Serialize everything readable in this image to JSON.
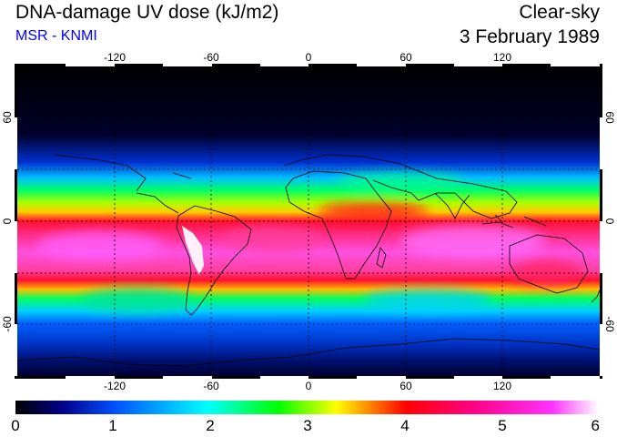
{
  "header": {
    "title": "DNA-damage UV dose (kJ/m2)",
    "source": "MSR - KNMI",
    "condition": "Clear-sky",
    "date": "3 February 1989"
  },
  "axes": {
    "lon_ticks": [
      "-120",
      "-60",
      "0",
      "60",
      "120"
    ],
    "lat_ticks": [
      "60",
      "0",
      "-60"
    ]
  },
  "colorbar": {
    "labels": [
      "0",
      "1",
      "2",
      "3",
      "4",
      "5",
      "6"
    ],
    "stops": [
      "#000000",
      "#000088",
      "#0050ff",
      "#00ffff",
      "#00ff00",
      "#ffff00",
      "#ff0000",
      "#ff0080",
      "#ff33ff",
      "#ffffff"
    ]
  },
  "colors": {
    "source_text": "#0000ff"
  }
}
